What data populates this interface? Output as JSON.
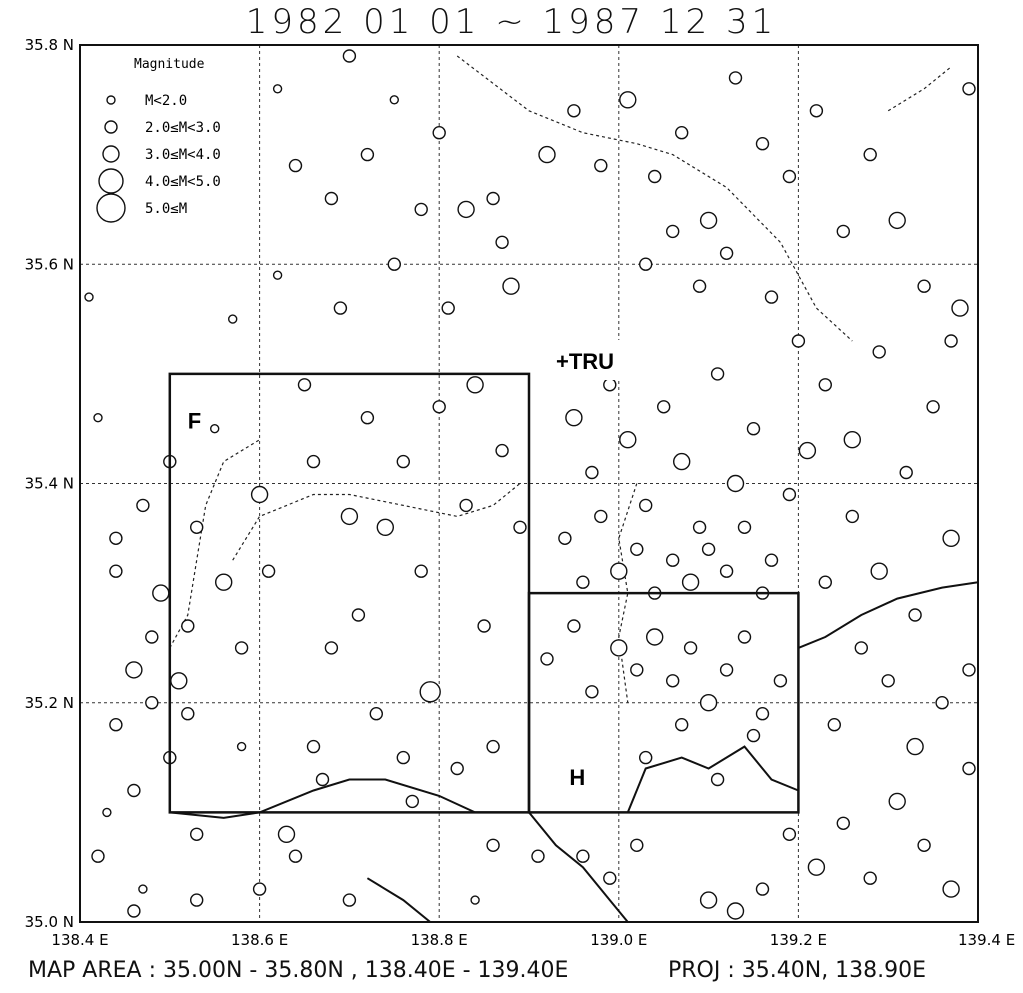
{
  "title": "1982 01 01 ~ 1987 12 31",
  "footer": {
    "map_area": "MAP AREA : 35.00N - 35.80N , 138.40E - 139.40E",
    "projection": "PROJ : 35.40N, 138.90E"
  },
  "map": {
    "lon_range": [
      138.4,
      139.4
    ],
    "lat_range": [
      35.0,
      35.8
    ],
    "lat_ticks": [
      {
        "value": 35.8,
        "label": "35.8 N"
      },
      {
        "value": 35.6,
        "label": "35.6 N"
      },
      {
        "value": 35.4,
        "label": "35.4 N"
      },
      {
        "value": 35.2,
        "label": "35.2 N"
      },
      {
        "value": 35.0,
        "label": "35.0 N"
      }
    ],
    "lon_ticks": [
      {
        "value": 138.4,
        "label": "138.4 E"
      },
      {
        "value": 138.6,
        "label": "138.6 E"
      },
      {
        "value": 138.8,
        "label": "138.8 E"
      },
      {
        "value": 139.0,
        "label": "139.0 E"
      },
      {
        "value": 139.2,
        "label": "139.2 E"
      },
      {
        "value": 139.4,
        "label": "139.4 E"
      }
    ],
    "regions": [
      {
        "label": "F",
        "lon": [
          138.5,
          138.9
        ],
        "lat": [
          35.1,
          35.5
        ],
        "label_at": [
          138.52,
          35.45
        ]
      },
      {
        "label": "H",
        "lon": [
          138.9,
          139.2
        ],
        "lat": [
          35.1,
          35.3
        ],
        "label_at": [
          138.945,
          35.125
        ]
      }
    ],
    "station": {
      "label": "+TRU",
      "lon": 138.94,
      "lat": 35.535
    },
    "legend": {
      "title": "Magnitude",
      "items": [
        {
          "label": "M<2.0",
          "size": 1
        },
        {
          "label": "2.0≤M<3.0",
          "size": 2
        },
        {
          "label": "3.0≤M<4.0",
          "size": 3
        },
        {
          "label": "4.0≤M<5.0",
          "size": 4
        },
        {
          "label": "5.0≤M",
          "size": 5
        }
      ]
    },
    "coastline": [
      [
        [
          138.5,
          35.1
        ],
        [
          138.56,
          35.095
        ],
        [
          138.6,
          35.1
        ],
        [
          138.66,
          35.12
        ],
        [
          138.7,
          35.13
        ],
        [
          138.74,
          35.13
        ],
        [
          138.8,
          35.115
        ],
        [
          138.84,
          35.1
        ],
        [
          138.9,
          35.1
        ]
      ],
      [
        [
          139.01,
          35.1
        ],
        [
          139.03,
          35.14
        ],
        [
          139.07,
          35.15
        ],
        [
          139.1,
          35.14
        ],
        [
          139.14,
          35.16
        ],
        [
          139.17,
          35.13
        ],
        [
          139.2,
          35.12
        ]
      ],
      [
        [
          139.2,
          35.25
        ],
        [
          139.23,
          35.26
        ],
        [
          139.27,
          35.28
        ],
        [
          139.31,
          35.295
        ],
        [
          139.36,
          35.305
        ],
        [
          139.4,
          35.31
        ]
      ],
      [
        [
          138.9,
          35.1
        ],
        [
          138.93,
          35.07
        ],
        [
          138.96,
          35.05
        ],
        [
          138.99,
          35.02
        ],
        [
          139.01,
          35.0
        ]
      ],
      [
        [
          138.72,
          35.04
        ],
        [
          138.76,
          35.02
        ],
        [
          138.79,
          35.0
        ]
      ]
    ],
    "prefecture_boundaries": [
      [
        [
          138.82,
          35.79
        ],
        [
          138.9,
          35.74
        ],
        [
          138.96,
          35.72
        ],
        [
          139.02,
          35.71
        ],
        [
          139.06,
          35.7
        ],
        [
          139.12,
          35.67
        ],
        [
          139.18,
          35.62
        ],
        [
          139.22,
          35.56
        ],
        [
          139.26,
          35.53
        ]
      ],
      [
        [
          138.57,
          35.33
        ],
        [
          138.6,
          35.37
        ],
        [
          138.66,
          35.39
        ],
        [
          138.7,
          35.39
        ],
        [
          138.76,
          35.38
        ],
        [
          138.82,
          35.37
        ],
        [
          138.86,
          35.38
        ],
        [
          138.89,
          35.4
        ]
      ],
      [
        [
          138.5,
          35.25
        ],
        [
          138.52,
          35.28
        ],
        [
          138.53,
          35.33
        ],
        [
          138.54,
          35.38
        ],
        [
          138.56,
          35.42
        ],
        [
          138.6,
          35.44
        ]
      ],
      [
        [
          139.02,
          35.4
        ],
        [
          139.0,
          35.35
        ],
        [
          139.01,
          35.3
        ],
        [
          139.0,
          35.26
        ],
        [
          139.01,
          35.2
        ]
      ],
      [
        [
          139.3,
          35.74
        ],
        [
          139.34,
          35.76
        ],
        [
          139.37,
          35.78
        ]
      ]
    ],
    "events": [
      [
        138.41,
        35.57,
        1
      ],
      [
        138.42,
        35.06,
        2
      ],
      [
        138.43,
        35.1,
        1
      ],
      [
        138.44,
        35.18,
        2
      ],
      [
        138.44,
        35.35,
        2
      ],
      [
        138.44,
        35.32,
        2
      ],
      [
        138.46,
        35.23,
        3
      ],
      [
        138.46,
        35.12,
        2
      ],
      [
        138.47,
        35.03,
        1
      ],
      [
        138.48,
        35.26,
        2
      ],
      [
        138.48,
        35.2,
        2
      ],
      [
        138.49,
        35.3,
        3
      ],
      [
        138.5,
        35.15,
        2
      ],
      [
        138.5,
        35.42,
        2
      ],
      [
        138.51,
        35.22,
        3
      ],
      [
        138.52,
        35.27,
        2
      ],
      [
        138.53,
        35.36,
        2
      ],
      [
        138.53,
        35.08,
        2
      ],
      [
        138.55,
        35.45,
        1
      ],
      [
        138.56,
        35.31,
        3
      ],
      [
        138.57,
        35.55,
        1
      ],
      [
        138.58,
        35.16,
        1
      ],
      [
        138.6,
        35.39,
        3
      ],
      [
        138.61,
        35.32,
        2
      ],
      [
        138.62,
        35.59,
        1
      ],
      [
        138.63,
        35.08,
        3
      ],
      [
        138.65,
        35.49,
        2
      ],
      [
        138.66,
        35.42,
        2
      ],
      [
        138.67,
        35.13,
        2
      ],
      [
        138.68,
        35.25,
        2
      ],
      [
        138.69,
        35.56,
        2
      ],
      [
        138.7,
        35.37,
        3
      ],
      [
        138.71,
        35.28,
        2
      ],
      [
        138.72,
        35.46,
        2
      ],
      [
        138.73,
        35.19,
        2
      ],
      [
        138.74,
        35.36,
        3
      ],
      [
        138.75,
        35.6,
        2
      ],
      [
        138.76,
        35.42,
        2
      ],
      [
        138.77,
        35.11,
        2
      ],
      [
        138.78,
        35.32,
        2
      ],
      [
        138.79,
        35.21,
        4
      ],
      [
        138.8,
        35.47,
        2
      ],
      [
        138.81,
        35.56,
        2
      ],
      [
        138.82,
        35.14,
        2
      ],
      [
        138.83,
        35.38,
        2
      ],
      [
        138.84,
        35.49,
        3
      ],
      [
        138.85,
        35.27,
        2
      ],
      [
        138.86,
        35.07,
        2
      ],
      [
        138.87,
        35.43,
        2
      ],
      [
        138.88,
        35.58,
        3
      ],
      [
        138.89,
        35.36,
        2
      ],
      [
        138.75,
        35.75,
        1
      ],
      [
        138.7,
        35.79,
        2
      ],
      [
        138.62,
        35.76,
        1
      ],
      [
        138.8,
        35.72,
        2
      ],
      [
        138.83,
        35.65,
        3
      ],
      [
        138.92,
        35.7,
        3
      ],
      [
        138.95,
        35.74,
        2
      ],
      [
        138.98,
        35.69,
        2
      ],
      [
        139.01,
        35.75,
        3
      ],
      [
        139.04,
        35.68,
        2
      ],
      [
        139.07,
        35.72,
        2
      ],
      [
        139.1,
        35.64,
        3
      ],
      [
        139.13,
        35.77,
        2
      ],
      [
        139.16,
        35.71,
        2
      ],
      [
        139.19,
        35.68,
        2
      ],
      [
        139.22,
        35.74,
        2
      ],
      [
        139.25,
        35.63,
        2
      ],
      [
        139.28,
        35.7,
        2
      ],
      [
        139.31,
        35.64,
        3
      ],
      [
        139.34,
        35.58,
        2
      ],
      [
        139.37,
        35.53,
        2
      ],
      [
        139.39,
        35.76,
        2
      ],
      [
        139.38,
        35.56,
        3
      ],
      [
        139.35,
        35.47,
        2
      ],
      [
        139.32,
        35.41,
        2
      ],
      [
        139.29,
        35.52,
        2
      ],
      [
        139.26,
        35.44,
        3
      ],
      [
        139.23,
        35.49,
        2
      ],
      [
        138.93,
        35.52,
        2
      ],
      [
        138.95,
        35.46,
        3
      ],
      [
        138.97,
        35.41,
        2
      ],
      [
        138.99,
        35.49,
        2
      ],
      [
        139.01,
        35.44,
        3
      ],
      [
        139.03,
        35.38,
        2
      ],
      [
        139.05,
        35.47,
        2
      ],
      [
        139.07,
        35.42,
        3
      ],
      [
        139.09,
        35.36,
        2
      ],
      [
        139.11,
        35.5,
        2
      ],
      [
        139.13,
        35.4,
        3
      ],
      [
        139.15,
        35.45,
        2
      ],
      [
        139.17,
        35.33,
        2
      ],
      [
        139.19,
        35.39,
        2
      ],
      [
        139.21,
        35.43,
        3
      ],
      [
        138.94,
        35.35,
        2
      ],
      [
        138.96,
        35.31,
        2
      ],
      [
        138.98,
        35.37,
        2
      ],
      [
        139.0,
        35.32,
        3
      ],
      [
        139.02,
        35.34,
        2
      ],
      [
        139.04,
        35.3,
        2
      ],
      [
        139.06,
        35.33,
        2
      ],
      [
        139.08,
        35.31,
        3
      ],
      [
        139.1,
        35.34,
        2
      ],
      [
        139.12,
        35.32,
        2
      ],
      [
        139.14,
        35.36,
        2
      ],
      [
        139.16,
        35.3,
        2
      ],
      [
        138.92,
        35.24,
        2
      ],
      [
        138.95,
        35.27,
        2
      ],
      [
        138.97,
        35.21,
        2
      ],
      [
        139.0,
        35.25,
        3
      ],
      [
        139.02,
        35.23,
        2
      ],
      [
        139.04,
        35.26,
        3
      ],
      [
        139.06,
        35.22,
        2
      ],
      [
        139.08,
        35.25,
        2
      ],
      [
        139.1,
        35.2,
        3
      ],
      [
        139.12,
        35.23,
        2
      ],
      [
        139.14,
        35.26,
        2
      ],
      [
        139.16,
        35.19,
        2
      ],
      [
        139.18,
        35.22,
        2
      ],
      [
        139.03,
        35.15,
        2
      ],
      [
        139.07,
        35.18,
        2
      ],
      [
        139.11,
        35.13,
        2
      ],
      [
        139.15,
        35.17,
        2
      ],
      [
        138.96,
        35.06,
        2
      ],
      [
        138.99,
        35.04,
        2
      ],
      [
        139.02,
        35.07,
        2
      ],
      [
        139.1,
        35.02,
        3
      ],
      [
        139.13,
        35.01,
        3
      ],
      [
        139.16,
        35.03,
        2
      ],
      [
        139.19,
        35.08,
        2
      ],
      [
        139.22,
        35.05,
        3
      ],
      [
        139.25,
        35.09,
        2
      ],
      [
        139.28,
        35.04,
        2
      ],
      [
        139.31,
        35.11,
        3
      ],
      [
        139.34,
        35.07,
        2
      ],
      [
        139.37,
        35.03,
        3
      ],
      [
        139.39,
        35.14,
        2
      ],
      [
        139.36,
        35.2,
        2
      ],
      [
        139.33,
        35.16,
        3
      ],
      [
        139.3,
        35.22,
        2
      ],
      [
        139.27,
        35.25,
        2
      ],
      [
        139.24,
        35.18,
        2
      ],
      [
        139.29,
        35.32,
        3
      ],
      [
        139.33,
        35.28,
        2
      ],
      [
        139.37,
        35.35,
        3
      ],
      [
        139.39,
        35.23,
        2
      ],
      [
        139.26,
        35.37,
        2
      ],
      [
        139.23,
        35.31,
        2
      ],
      [
        138.6,
        35.03,
        2
      ],
      [
        138.64,
        35.06,
        2
      ],
      [
        138.7,
        35.02,
        2
      ],
      [
        138.84,
        35.02,
        1
      ],
      [
        138.91,
        35.06,
        2
      ],
      [
        138.53,
        35.02,
        2
      ],
      [
        138.46,
        35.01,
        2
      ],
      [
        138.42,
        35.46,
        1
      ],
      [
        138.47,
        35.38,
        2
      ],
      [
        138.52,
        35.19,
        2
      ],
      [
        138.58,
        35.25,
        2
      ],
      [
        138.66,
        35.16,
        2
      ],
      [
        138.76,
        35.15,
        2
      ],
      [
        138.86,
        35.16,
        2
      ],
      [
        138.64,
        35.69,
        2
      ],
      [
        138.68,
        35.66,
        2
      ],
      [
        138.72,
        35.7,
        2
      ],
      [
        138.78,
        35.65,
        2
      ],
      [
        138.86,
        35.66,
        2
      ],
      [
        138.87,
        35.62,
        2
      ],
      [
        139.03,
        35.6,
        2
      ],
      [
        139.06,
        35.63,
        2
      ],
      [
        139.09,
        35.58,
        2
      ],
      [
        139.12,
        35.61,
        2
      ],
      [
        139.17,
        35.57,
        2
      ],
      [
        139.2,
        35.53,
        2
      ]
    ]
  }
}
